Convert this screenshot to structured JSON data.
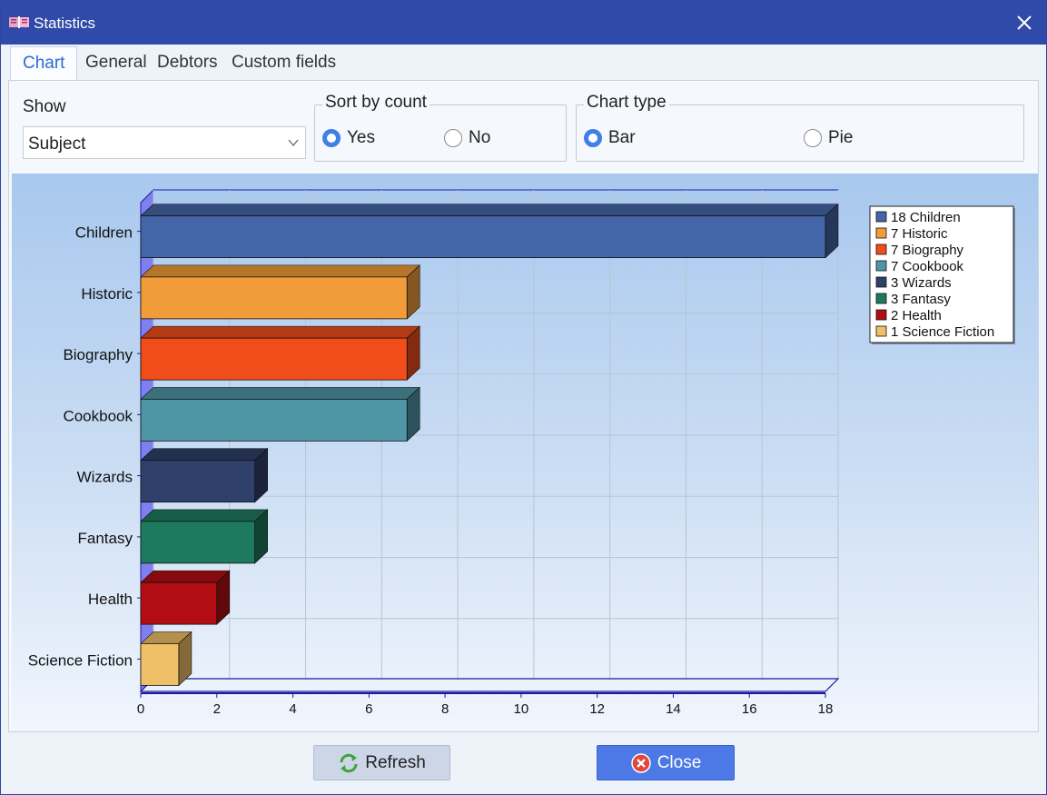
{
  "window": {
    "title": "Statistics"
  },
  "tabs": [
    {
      "label": "Chart",
      "active": true
    },
    {
      "label": "General",
      "active": false
    },
    {
      "label": "Debtors",
      "active": false
    },
    {
      "label": "Custom fields",
      "active": false
    }
  ],
  "controls": {
    "show_label": "Show",
    "show_value": "Subject",
    "sort_label": "Sort by count",
    "sort_yes": "Yes",
    "sort_no": "No",
    "sort_selected": "Yes",
    "type_label": "Chart type",
    "type_bar": "Bar",
    "type_pie": "Pie",
    "type_selected": "Bar"
  },
  "buttons": {
    "refresh": "Refresh",
    "close": "Close"
  },
  "colors": {
    "titlebar": "#2f4aa8",
    "accent": "#3f7fe6",
    "close_button": "#4c79e6"
  },
  "chart_data": {
    "type": "bar",
    "orientation": "horizontal",
    "style": "3d",
    "categories": [
      "Children",
      "Historic",
      "Biography",
      "Cookbook",
      "Wizards",
      "Fantasy",
      "Health",
      "Science Fiction"
    ],
    "values": [
      18,
      7,
      7,
      7,
      3,
      3,
      2,
      1
    ],
    "colors": [
      "#4466a8",
      "#f19c38",
      "#f04d1a",
      "#4e96a6",
      "#2f406b",
      "#1e7a5f",
      "#b20d12",
      "#f0c068"
    ],
    "legend": [
      "18 Children",
      "7 Historic",
      "7 Biography",
      "7 Cookbook",
      "3 Wizards",
      "3 Fantasy",
      "2 Health",
      "1 Science Fiction"
    ],
    "legend_position": "top-right",
    "x_ticks": [
      "0",
      "2",
      "4",
      "6",
      "8",
      "10",
      "12",
      "14",
      "16",
      "18"
    ],
    "xlim": [
      0,
      18
    ],
    "grid": true,
    "title": "",
    "xlabel": "",
    "ylabel": ""
  }
}
